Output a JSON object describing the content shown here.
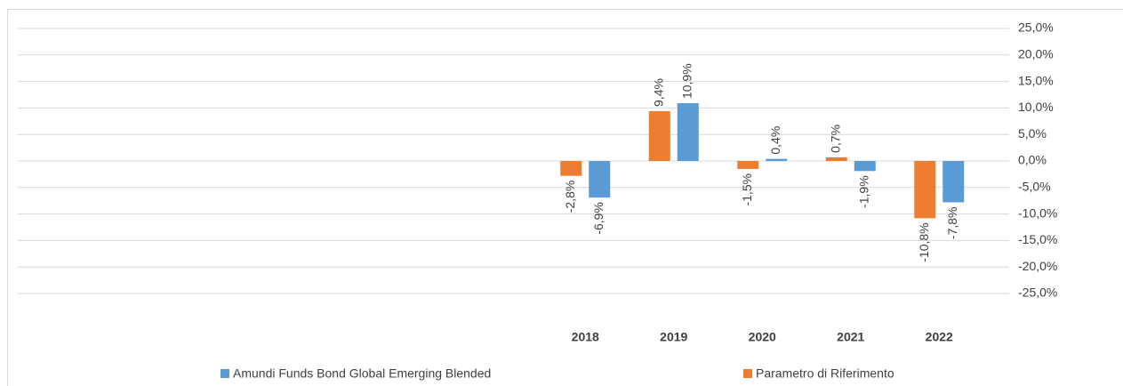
{
  "chart_data": {
    "type": "bar",
    "categories": [
      null,
      null,
      null,
      null,
      null,
      "2018",
      "2019",
      "2020",
      "2021",
      "2022"
    ],
    "series": [
      {
        "name": "Amundi Funds Bond Global Emerging Blended",
        "color": "#5b9bd5",
        "values": [
          null,
          null,
          null,
          null,
          null,
          -6.9,
          10.9,
          0.4,
          -1.9,
          -7.8
        ],
        "value_labels": [
          null,
          null,
          null,
          null,
          null,
          "-6,9%",
          "10,9%",
          "0,4%",
          "-1,9%",
          "-7,8%"
        ]
      },
      {
        "name": "Parametro di Riferimento",
        "color": "#ed7d31",
        "values": [
          null,
          null,
          null,
          null,
          null,
          -2.8,
          9.4,
          -1.5,
          0.7,
          -10.8
        ],
        "value_labels": [
          null,
          null,
          null,
          null,
          null,
          "-2,8%",
          "9,4%",
          "-1,5%",
          "0,7%",
          "-10,8%"
        ]
      }
    ],
    "ylim": [
      -25,
      25
    ],
    "yticks": [
      {
        "value": 25,
        "label": "25,0%"
      },
      {
        "value": 20,
        "label": "20,0%"
      },
      {
        "value": 15,
        "label": "15,0%"
      },
      {
        "value": 10,
        "label": "10,0%"
      },
      {
        "value": 5,
        "label": "5,0%"
      },
      {
        "value": 0,
        "label": "0,0%"
      },
      {
        "value": -5,
        "label": "-5,0%"
      },
      {
        "value": -10,
        "label": "-10,0%"
      },
      {
        "value": -15,
        "label": "-15,0%"
      },
      {
        "value": -20,
        "label": "-20,0%"
      },
      {
        "value": -25,
        "label": "-25,0%"
      }
    ],
    "grid": true
  }
}
